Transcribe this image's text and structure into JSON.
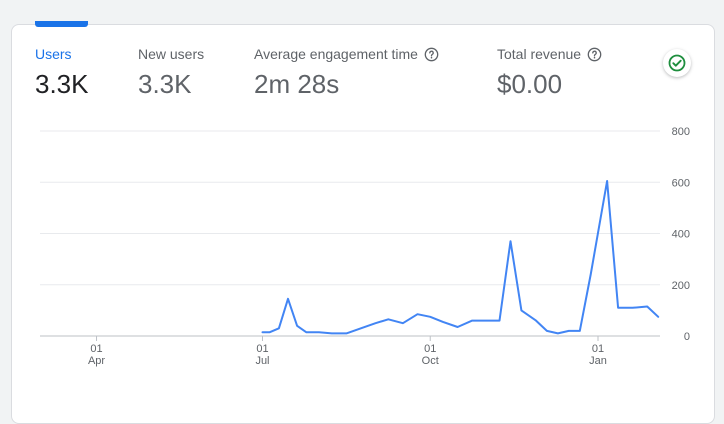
{
  "metrics": [
    {
      "label": "Users",
      "value": "3.3K",
      "active": true,
      "help": false
    },
    {
      "label": "New users",
      "value": "3.3K",
      "active": false,
      "help": false
    },
    {
      "label": "Average engagement time",
      "value": "2m 28s",
      "active": false,
      "help": true
    },
    {
      "label": "Total revenue",
      "value": "$0.00",
      "active": false,
      "help": true
    }
  ],
  "status": {
    "icon": "check-circle-icon",
    "color": "#1e8e3e"
  },
  "colors": {
    "accent": "#1a73e8",
    "line": "#4285f4",
    "grid": "#e8eaed"
  },
  "chart_data": {
    "type": "line",
    "series": [
      {
        "name": "Users",
        "values": [
          {
            "date": "2024-07-01",
            "y": 15
          },
          {
            "date": "2024-07-05",
            "y": 15
          },
          {
            "date": "2024-07-10",
            "y": 30
          },
          {
            "date": "2024-07-15",
            "y": 145
          },
          {
            "date": "2024-07-20",
            "y": 40
          },
          {
            "date": "2024-07-25",
            "y": 15
          },
          {
            "date": "2024-08-01",
            "y": 15
          },
          {
            "date": "2024-08-08",
            "y": 10
          },
          {
            "date": "2024-08-16",
            "y": 10
          },
          {
            "date": "2024-08-24",
            "y": 30
          },
          {
            "date": "2024-09-01",
            "y": 50
          },
          {
            "date": "2024-09-08",
            "y": 65
          },
          {
            "date": "2024-09-16",
            "y": 50
          },
          {
            "date": "2024-09-24",
            "y": 85
          },
          {
            "date": "2024-10-01",
            "y": 75
          },
          {
            "date": "2024-10-08",
            "y": 55
          },
          {
            "date": "2024-10-16",
            "y": 35
          },
          {
            "date": "2024-10-24",
            "y": 60
          },
          {
            "date": "2024-11-01",
            "y": 60
          },
          {
            "date": "2024-11-08",
            "y": 60
          },
          {
            "date": "2024-11-14",
            "y": 370
          },
          {
            "date": "2024-11-20",
            "y": 100
          },
          {
            "date": "2024-11-28",
            "y": 60
          },
          {
            "date": "2024-12-04",
            "y": 20
          },
          {
            "date": "2024-12-10",
            "y": 10
          },
          {
            "date": "2024-12-16",
            "y": 20
          },
          {
            "date": "2024-12-22",
            "y": 20
          },
          {
            "date": "2024-12-28",
            "y": 240
          },
          {
            "date": "2025-01-06",
            "y": 605
          },
          {
            "date": "2025-01-12",
            "y": 110
          },
          {
            "date": "2025-01-20",
            "y": 110
          },
          {
            "date": "2025-01-28",
            "y": 115
          },
          {
            "date": "2025-02-03",
            "y": 75
          }
        ]
      }
    ],
    "x_range": [
      "2024-03-01",
      "2025-02-04"
    ],
    "x_ticks": [
      {
        "date": "2024-04-01",
        "day": "01",
        "month": "Apr"
      },
      {
        "date": "2024-07-01",
        "day": "01",
        "month": "Jul"
      },
      {
        "date": "2024-10-01",
        "day": "01",
        "month": "Oct"
      },
      {
        "date": "2025-01-01",
        "day": "01",
        "month": "Jan"
      }
    ],
    "y_ticks": [
      0,
      200,
      400,
      600,
      800
    ],
    "ylim": [
      0,
      800
    ],
    "axis_position": "right",
    "grid": true
  }
}
